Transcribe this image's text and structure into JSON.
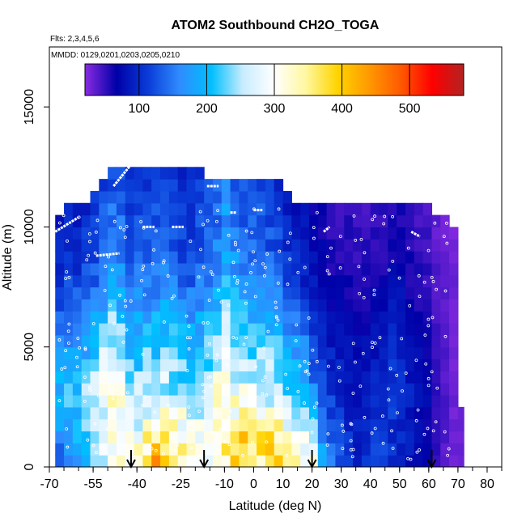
{
  "chart_data": {
    "type": "heatmap",
    "title": "ATOM2 Southbound CH2O_TOGA",
    "flights_label": "Flts: 2,3,4,5,6",
    "dates_label": "MMDD: 0129,0201,0203,0205,0210",
    "xlabel": "Latitude (deg N)",
    "ylabel": "Altitude (m)",
    "xlim": [
      -70,
      85
    ],
    "ylim": [
      0,
      17500
    ],
    "x_ticks": [
      -70,
      -55,
      -40,
      -25,
      -10,
      0,
      10,
      20,
      30,
      40,
      50,
      60,
      70,
      80
    ],
    "y_ticks": [
      0,
      5000,
      10000,
      15000
    ],
    "colorbar": {
      "range": [
        20,
        580
      ],
      "ticks": [
        100,
        200,
        300,
        400,
        500
      ],
      "colors": [
        "#8a2be2",
        "#0000a8",
        "#0a3cd8",
        "#2f8cff",
        "#00bfff",
        "#c8ecff",
        "#ffffff",
        "#fff7a0",
        "#ffd400",
        "#ff9900",
        "#ff5a00",
        "#ff0000",
        "#b22222"
      ]
    },
    "profile_arrows_lat": [
      -42,
      -17,
      20,
      61
    ],
    "grid_columns": [
      {
        "x0": -68,
        "x1": -65,
        "top": 10500,
        "base": 120,
        "mid": 200,
        "upper": 100
      },
      {
        "x0": -65,
        "x1": -62,
        "top": 11000,
        "base": 150,
        "mid": 210,
        "upper": 110
      },
      {
        "x0": -62,
        "x1": -59,
        "top": 11000,
        "base": 170,
        "mid": 220,
        "upper": 110
      },
      {
        "x0": -59,
        "x1": -56,
        "top": 11000,
        "base": 200,
        "mid": 240,
        "upper": 120
      },
      {
        "x0": -56,
        "x1": -53,
        "top": 11500,
        "base": 230,
        "mid": 260,
        "upper": 130
      },
      {
        "x0": -53,
        "x1": -50,
        "top": 12000,
        "base": 260,
        "mid": 300,
        "upper": 150
      },
      {
        "x0": -50,
        "x1": -47,
        "top": 12500,
        "base": 300,
        "mid": 330,
        "upper": 170
      },
      {
        "x0": -47,
        "x1": -44,
        "top": 12500,
        "base": 350,
        "mid": 300,
        "upper": 160
      },
      {
        "x0": -44,
        "x1": -41,
        "top": 12500,
        "base": 320,
        "mid": 260,
        "upper": 130
      },
      {
        "x0": -41,
        "x1": -38,
        "top": 12500,
        "base": 330,
        "mid": 250,
        "upper": 140
      },
      {
        "x0": -38,
        "x1": -35,
        "top": 12500,
        "base": 380,
        "mid": 260,
        "upper": 140
      },
      {
        "x0": -35,
        "x1": -32,
        "top": 12500,
        "base": 430,
        "mid": 260,
        "upper": 150
      },
      {
        "x0": -32,
        "x1": -29,
        "top": 12500,
        "base": 440,
        "mid": 270,
        "upper": 150
      },
      {
        "x0": -29,
        "x1": -26,
        "top": 12500,
        "base": 400,
        "mid": 260,
        "upper": 140
      },
      {
        "x0": -26,
        "x1": -23,
        "top": 12500,
        "base": 380,
        "mid": 250,
        "upper": 130
      },
      {
        "x0": -23,
        "x1": -20,
        "top": 12500,
        "base": 350,
        "mid": 250,
        "upper": 130
      },
      {
        "x0": -20,
        "x1": -17,
        "top": 12500,
        "base": 330,
        "mid": 260,
        "upper": 140
      },
      {
        "x0": -17,
        "x1": -14,
        "top": 12000,
        "base": 320,
        "mid": 270,
        "upper": 150
      },
      {
        "x0": -14,
        "x1": -11,
        "top": 12000,
        "base": 320,
        "mid": 300,
        "upper": 170
      },
      {
        "x0": -11,
        "x1": -8,
        "top": 12000,
        "base": 340,
        "mid": 320,
        "upper": 200
      },
      {
        "x0": -8,
        "x1": -5,
        "top": 12000,
        "base": 380,
        "mid": 300,
        "upper": 180
      },
      {
        "x0": -5,
        "x1": -2,
        "top": 12000,
        "base": 420,
        "mid": 290,
        "upper": 160
      },
      {
        "x0": -2,
        "x1": 1,
        "top": 12000,
        "base": 400,
        "mid": 280,
        "upper": 150
      },
      {
        "x0": 1,
        "x1": 4,
        "top": 12000,
        "base": 380,
        "mid": 280,
        "upper": 150
      },
      {
        "x0": 4,
        "x1": 7,
        "top": 12000,
        "base": 430,
        "mid": 270,
        "upper": 140
      },
      {
        "x0": 7,
        "x1": 10,
        "top": 12000,
        "base": 400,
        "mid": 260,
        "upper": 130
      },
      {
        "x0": 10,
        "x1": 13,
        "top": 11500,
        "base": 340,
        "mid": 240,
        "upper": 110
      },
      {
        "x0": 13,
        "x1": 16,
        "top": 11000,
        "base": 320,
        "mid": 220,
        "upper": 100
      },
      {
        "x0": 16,
        "x1": 19,
        "top": 11000,
        "base": 340,
        "mid": 200,
        "upper": 90
      },
      {
        "x0": 19,
        "x1": 22,
        "top": 11000,
        "base": 300,
        "mid": 160,
        "upper": 80
      },
      {
        "x0": 22,
        "x1": 25,
        "top": 11000,
        "base": 200,
        "mid": 130,
        "upper": 70
      },
      {
        "x0": 25,
        "x1": 28,
        "top": 11000,
        "base": 160,
        "mid": 110,
        "upper": 60
      },
      {
        "x0": 28,
        "x1": 31,
        "top": 11000,
        "base": 140,
        "mid": 100,
        "upper": 60
      },
      {
        "x0": 31,
        "x1": 34,
        "top": 11000,
        "base": 120,
        "mid": 90,
        "upper": 60
      },
      {
        "x0": 34,
        "x1": 37,
        "top": 11000,
        "base": 100,
        "mid": 80,
        "upper": 55
      },
      {
        "x0": 37,
        "x1": 40,
        "top": 11000,
        "base": 100,
        "mid": 90,
        "upper": 55
      },
      {
        "x0": 40,
        "x1": 43,
        "top": 11000,
        "base": 110,
        "mid": 100,
        "upper": 60
      },
      {
        "x0": 43,
        "x1": 46,
        "top": 11000,
        "base": 110,
        "mid": 110,
        "upper": 60
      },
      {
        "x0": 46,
        "x1": 49,
        "top": 11000,
        "base": 100,
        "mid": 110,
        "upper": 70
      },
      {
        "x0": 49,
        "x1": 52,
        "top": 11000,
        "base": 90,
        "mid": 100,
        "upper": 70
      },
      {
        "x0": 52,
        "x1": 55,
        "top": 11000,
        "base": 80,
        "mid": 90,
        "upper": 60
      },
      {
        "x0": 55,
        "x1": 58,
        "top": 11000,
        "base": 70,
        "mid": 80,
        "upper": 55
      },
      {
        "x0": 58,
        "x1": 61,
        "top": 11000,
        "base": 60,
        "mid": 70,
        "upper": 50
      },
      {
        "x0": 61,
        "x1": 64,
        "top": 10500,
        "base": 50,
        "mid": 50,
        "upper": 40
      },
      {
        "x0": 64,
        "x1": 67,
        "top": 10500,
        "base": 40,
        "mid": 40,
        "upper": 35
      },
      {
        "x0": 67,
        "x1": 70,
        "top": 10000,
        "base": 30,
        "mid": 30,
        "upper": 30
      },
      {
        "x0": 70,
        "x1": 72,
        "top": 2500,
        "base": 30,
        "mid": 30,
        "upper": 30
      }
    ]
  }
}
